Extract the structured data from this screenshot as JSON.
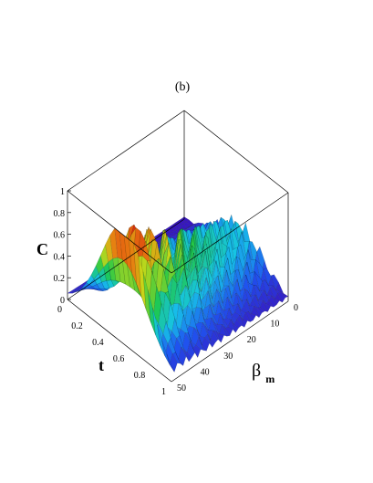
{
  "panel_label": "(b)",
  "chart_data": {
    "type": "surface3d",
    "title": "",
    "zlabel": "C",
    "xlabel": "t",
    "ylabel_symbol": "β",
    "ylabel_subscript": "m",
    "x_range": [
      0,
      1
    ],
    "y_range": [
      0,
      50
    ],
    "z_range": [
      0,
      1
    ],
    "z_ticks": [
      "0",
      "0.2",
      "0.4",
      "0.6",
      "0.8",
      "1"
    ],
    "t_ticks": [
      "0",
      "0.2",
      "0.4",
      "0.6",
      "0.8",
      "1"
    ],
    "beta_ticks": [
      "0",
      "10",
      "20",
      "30",
      "40",
      "50"
    ],
    "colormap": [
      "#3b0bb8",
      "#1f54f0",
      "#16c4e8",
      "#1ec84a",
      "#c8d818",
      "#e87a10",
      "#d41010"
    ],
    "surface_description_values": {
      "t_peak": 0.5,
      "max_C_near_beta_0": 1.0,
      "min_C": 0.0,
      "oscillation_increases_with_beta": true
    }
  }
}
